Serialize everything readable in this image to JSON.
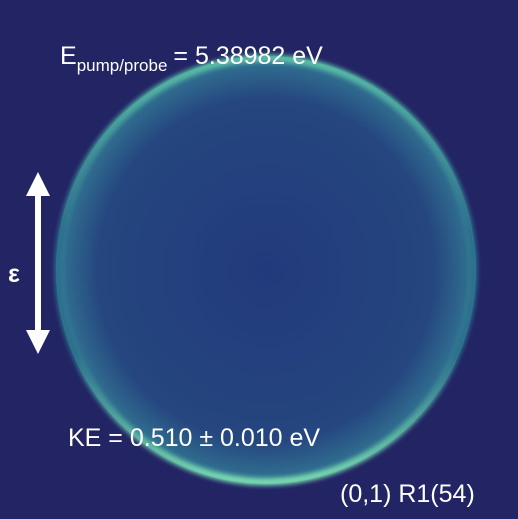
{
  "annotations": {
    "energy_symbol": "E",
    "energy_subscript": "pump/probe",
    "energy_value": "= 5.38982 eV",
    "polarization": "ε",
    "kinetic_energy": "KE = 0.510 ± 0.010 eV",
    "transition": "(0,1) R1(54)"
  }
}
